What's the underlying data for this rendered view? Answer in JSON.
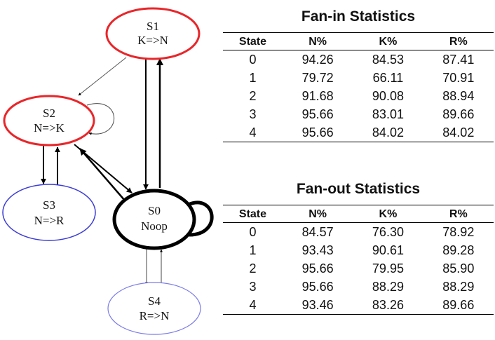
{
  "diagram": {
    "nodes": [
      {
        "id": "S1",
        "name": "S1",
        "label": "K=>N",
        "border": "#e8262a"
      },
      {
        "id": "S2",
        "name": "S2",
        "label": "N=>K",
        "border": "#e8262a"
      },
      {
        "id": "S3",
        "name": "S3",
        "label": "N=>R",
        "border": "#3b3bd6"
      },
      {
        "id": "S0",
        "name": "S0",
        "label": "Noop",
        "border": "#000000"
      },
      {
        "id": "S4",
        "name": "S4",
        "label": "R=>N",
        "border": "#7b7bea"
      }
    ]
  },
  "fan_in": {
    "title": "Fan-in Statistics",
    "headers": [
      "State",
      "N%",
      "K%",
      "R%"
    ],
    "rows": [
      [
        "0",
        "94.26",
        "84.53",
        "87.41"
      ],
      [
        "1",
        "79.72",
        "66.11",
        "70.91"
      ],
      [
        "2",
        "91.68",
        "90.08",
        "88.94"
      ],
      [
        "3",
        "95.66",
        "83.01",
        "89.66"
      ],
      [
        "4",
        "95.66",
        "84.02",
        "84.02"
      ]
    ]
  },
  "fan_out": {
    "title": "Fan-out Statistics",
    "headers": [
      "State",
      "N%",
      "K%",
      "R%"
    ],
    "rows": [
      [
        "0",
        "84.57",
        "76.30",
        "78.92"
      ],
      [
        "1",
        "93.43",
        "90.61",
        "89.28"
      ],
      [
        "2",
        "95.66",
        "79.95",
        "85.90"
      ],
      [
        "3",
        "95.66",
        "88.29",
        "88.29"
      ],
      [
        "4",
        "93.46",
        "83.26",
        "89.66"
      ]
    ]
  }
}
